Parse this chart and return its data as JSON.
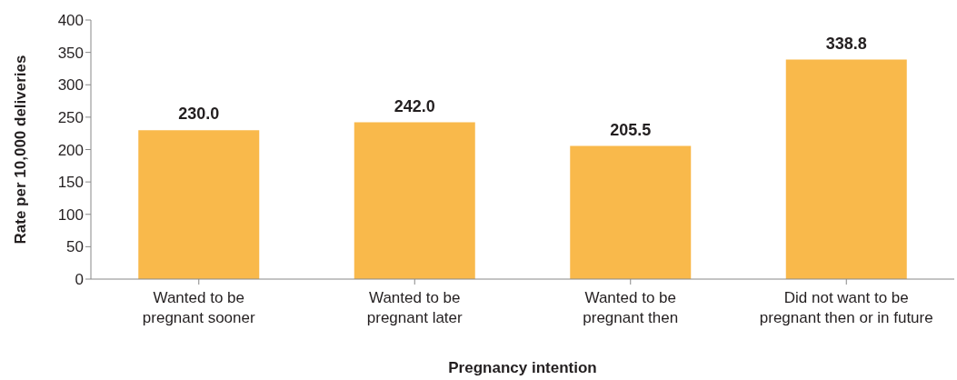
{
  "chart_data": {
    "type": "bar",
    "xlabel": "Pregnancy intention",
    "ylabel": "Rate per 10,000 deliveries",
    "categories": [
      "Wanted to be pregnant sooner",
      "Wanted to be pregnant later",
      "Wanted to be pregnant then",
      "Did not want to be pregnant then or in future"
    ],
    "values": [
      230.0,
      242.0,
      205.5,
      338.8
    ],
    "color": "#f9b94b",
    "value_labels": [
      "230.0",
      "242.0",
      "205.5",
      "338.8"
    ],
    "ylim": [
      0,
      400
    ],
    "yticks": [
      0,
      50,
      100,
      150,
      200,
      250,
      300,
      350,
      400
    ],
    "grid": false,
    "legend": false
  }
}
